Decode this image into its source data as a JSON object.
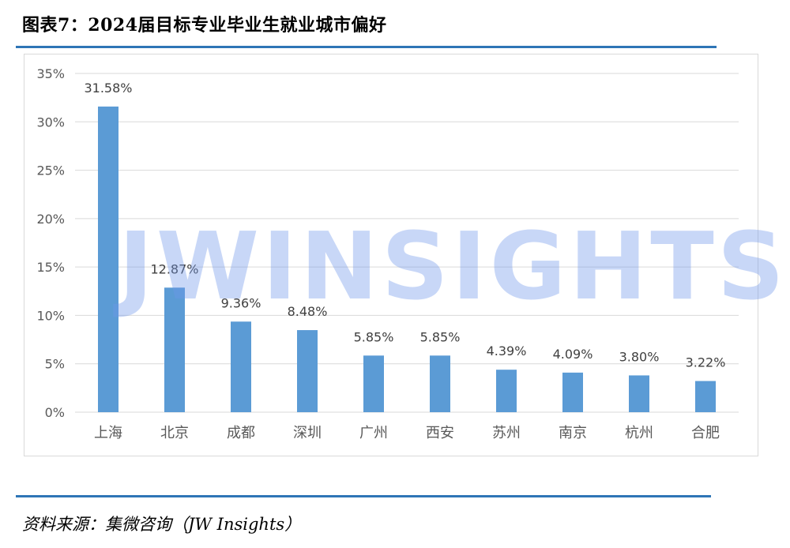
{
  "header": {
    "title": "图表7：2024届目标专业毕业生就业城市偏好"
  },
  "watermark": {
    "text": "JWINSIGHTS"
  },
  "footer": {
    "source": "资料来源：集微咨询（JW Insights）"
  },
  "colors": {
    "bar": "#5b9bd5",
    "rule": "#2e75b6",
    "grid": "#d9d9d9",
    "text": "#595959"
  },
  "chart_data": {
    "type": "bar",
    "categories": [
      "上海",
      "北京",
      "成都",
      "深圳",
      "广州",
      "西安",
      "苏州",
      "南京",
      "杭州",
      "合肥"
    ],
    "values": [
      31.58,
      12.87,
      9.36,
      8.48,
      5.85,
      5.85,
      4.39,
      4.09,
      3.8,
      3.22
    ],
    "data_labels": [
      "31.58%",
      "12.87%",
      "9.36%",
      "8.48%",
      "5.85%",
      "5.85%",
      "4.39%",
      "4.09%",
      "3.80%",
      "3.22%"
    ],
    "y_ticks": [
      "0%",
      "5%",
      "10%",
      "15%",
      "20%",
      "25%",
      "30%",
      "35%"
    ],
    "ylim": [
      0,
      35
    ],
    "grid": true,
    "legend": "none"
  }
}
